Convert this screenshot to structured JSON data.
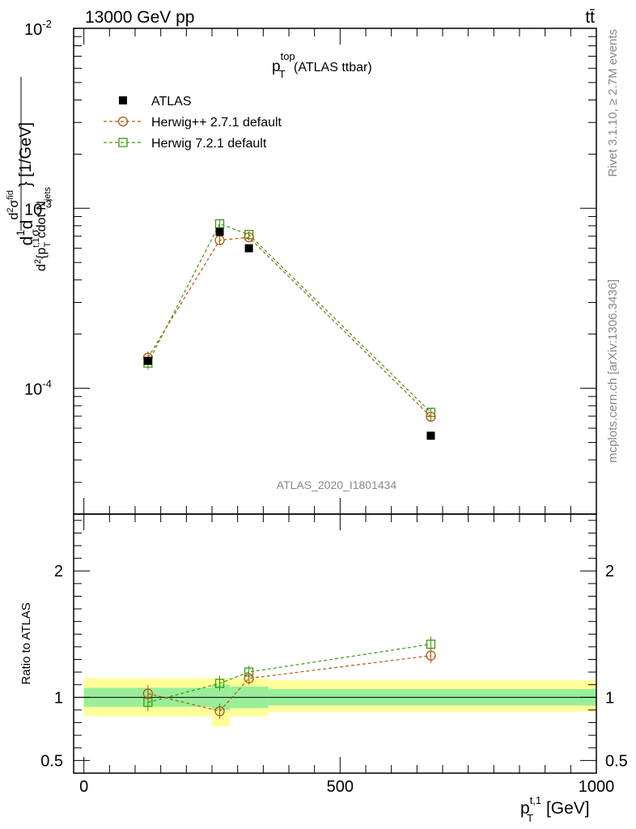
{
  "header": {
    "energy_label": "13000 GeV pp",
    "process_label": "tt̄"
  },
  "side": {
    "rivet_label": "Rivet 3.1.10, ≥ 2.7M events",
    "mcplots_label": "mcplots.cern.ch [arXiv:1306.3436]"
  },
  "chart_data": [
    {
      "type": "scatter",
      "title": "p_T^top (ATLAS ttbar)",
      "title_main": "p",
      "title_sup": "top",
      "title_sub": "T",
      "title_rest": " (ATLAS ttbar)",
      "watermark": "ATLAS_2020_I1801434",
      "ylabel": "d(1/σ)d(d²σ^fid)/d²{p_T^t,1 cdot N_jets} [1/GeV]",
      "ylabel_unit": "} [1/GeV]",
      "yscale": "log",
      "ylim": [
        2e-05,
        0.01
      ],
      "xlim": [
        -20,
        1000
      ],
      "y_ticks": [
        {
          "value": 0.01,
          "base": "10",
          "exp": "-2"
        },
        {
          "value": 0.001,
          "base": "10",
          "exp": "-3"
        },
        {
          "value": 0.0001,
          "base": "10",
          "exp": "-4"
        }
      ],
      "legend_position": "top-left",
      "series": [
        {
          "name": "ATLAS",
          "marker": "filled-square",
          "color": "#000000",
          "x": [
            125,
            265,
            322,
            677
          ],
          "y": [
            0.000142,
            0.00074,
            0.0006,
            5.45e-05
          ]
        },
        {
          "name": "Herwig++ 2.7.1 default",
          "marker": "open-circle",
          "color": "#b05a10",
          "line": "dashed",
          "x": [
            125,
            265,
            322,
            677
          ],
          "y": [
            0.000148,
            0.000665,
            0.00069,
            6.95e-05
          ],
          "err": [
            0.08,
            0.06,
            0.04,
            0.05
          ]
        },
        {
          "name": "Herwig 7.2.1 default",
          "marker": "open-square",
          "color": "#3a9a10",
          "line": "dashed",
          "x": [
            125,
            265,
            322,
            677
          ],
          "y": [
            0.000138,
            0.00082,
            0.000715,
            7.35e-05
          ],
          "err": [
            0.08,
            0.06,
            0.04,
            0.05
          ]
        }
      ]
    },
    {
      "type": "scatter",
      "ylabel": "Ratio to ATLAS",
      "xlabel": "p_T^t,1 [GeV]",
      "xlabel_main": "p",
      "xlabel_sup": "t,1",
      "xlabel_sub": "T",
      "xlabel_rest": " [GeV]",
      "xlim": [
        -20,
        1000
      ],
      "ylim": [
        0.4,
        2.45
      ],
      "x_ticks": [
        0,
        500,
        1000
      ],
      "y_ticks": [
        0.5,
        1,
        2
      ],
      "reference_line": 1,
      "bands": [
        {
          "x0": 0,
          "x1": 250,
          "inner": [
            0.925,
            1.075
          ],
          "outer": [
            0.85,
            1.15
          ]
        },
        {
          "x0": 250,
          "x1": 285,
          "inner": [
            0.9,
            1.1
          ],
          "outer": [
            0.77,
            1.15
          ]
        },
        {
          "x0": 285,
          "x1": 360,
          "inner": [
            0.915,
            1.085
          ],
          "outer": [
            0.85,
            1.15
          ]
        },
        {
          "x0": 360,
          "x1": 1000,
          "inner": [
            0.935,
            1.065
          ],
          "outer": [
            0.885,
            1.135
          ]
        }
      ],
      "band_colors": {
        "inner": "#99ee99",
        "outer": "#ffff99"
      },
      "series": [
        {
          "name": "Herwig++ 2.7.1 default",
          "marker": "open-circle",
          "color": "#b05a10",
          "x": [
            125,
            265,
            322,
            677
          ],
          "y": [
            1.03,
            0.89,
            1.15,
            1.33
          ],
          "err": [
            0.07,
            0.06,
            0.05,
            0.06
          ]
        },
        {
          "name": "Herwig 7.2.1 default",
          "marker": "open-square",
          "color": "#3a9a10",
          "x": [
            125,
            265,
            322,
            677
          ],
          "y": [
            0.96,
            1.11,
            1.2,
            1.42
          ],
          "err": [
            0.07,
            0.06,
            0.05,
            0.06
          ]
        }
      ]
    }
  ]
}
